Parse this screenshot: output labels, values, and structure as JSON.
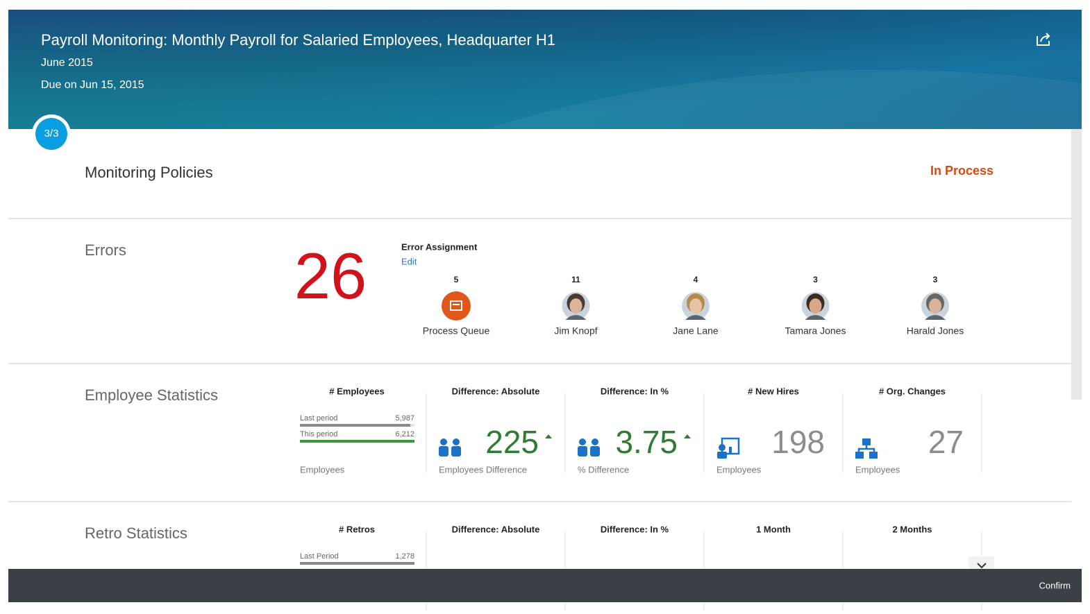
{
  "header": {
    "title": "Payroll Monitoring: Monthly Payroll for Salaried Employees, Headquarter H1",
    "period": "June 2015",
    "due": "Due on Jun 15, 2015",
    "step": "3/3"
  },
  "policies": {
    "title": "Monitoring Policies",
    "status": "In Process"
  },
  "errors": {
    "title": "Errors",
    "count": 26,
    "assignment_title": "Error Assignment",
    "edit": "Edit",
    "assignees": [
      {
        "count": 5,
        "name": "Process Queue"
      },
      {
        "count": 11,
        "name": "Jim Knopf"
      },
      {
        "count": 4,
        "name": "Jane Lane"
      },
      {
        "count": 3,
        "name": "Tamara Jones"
      },
      {
        "count": 3,
        "name": "Harald Jones"
      }
    ]
  },
  "employee_statistics": {
    "title": "Employee Statistics",
    "tiles": [
      {
        "title": "# Employees",
        "rows": [
          {
            "label": "Last period",
            "value": 5987,
            "value_label": "5,987",
            "color": "#8a8a8a"
          },
          {
            "label": "This period",
            "value": 6212,
            "value_label": "6,212",
            "color": "#3a9a3a"
          }
        ],
        "unit": "Employees"
      },
      {
        "title": "Difference: Absolute",
        "value": 225,
        "unit": "Employees Difference",
        "icon": "group",
        "trend": "up",
        "color": "#2e7d32"
      },
      {
        "title": "Difference: In %",
        "value": 3.75,
        "unit": "% Difference",
        "icon": "group",
        "trend": "up",
        "color": "#2e7d32"
      },
      {
        "title": "# New Hires",
        "value": 198,
        "unit": "Employees",
        "icon": "hire",
        "color": "#8c8c8c"
      },
      {
        "title": "# Org. Changes",
        "value": 27,
        "unit": "Employees",
        "icon": "org",
        "color": "#8c8c8c"
      }
    ]
  },
  "retro_statistics": {
    "title": "Retro Statistics",
    "tiles": [
      {
        "title": "# Retros",
        "rows": [
          {
            "label": "Last Period",
            "value": 1278,
            "value_label": "1,278",
            "color": "#8a8a8a"
          }
        ]
      },
      {
        "title": "Difference: Absolute"
      },
      {
        "title": "Difference: In %"
      },
      {
        "title": "1 Month"
      },
      {
        "title": "2 Months"
      }
    ]
  },
  "footer": {
    "confirm": "Confirm"
  }
}
